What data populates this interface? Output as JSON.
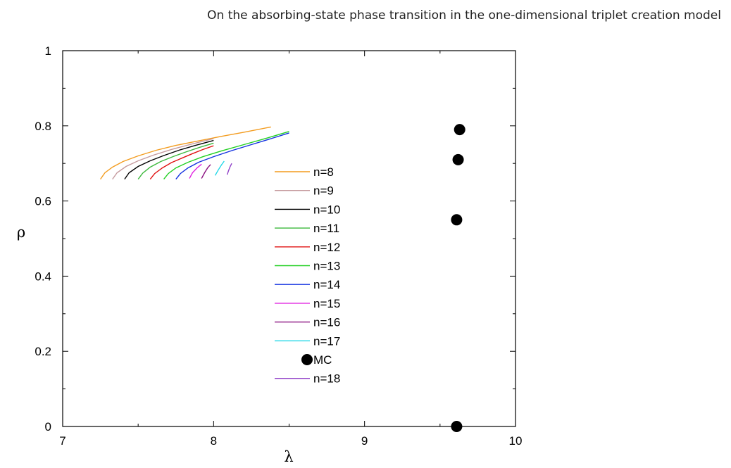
{
  "header": {
    "running_title": "On the absorbing-state phase transition in the one-dimensional triplet creation model"
  },
  "chart_data": {
    "type": "line",
    "title": "",
    "xlabel": "λ",
    "ylabel": "ρ",
    "xlim": [
      7,
      10
    ],
    "ylim": [
      0,
      1
    ],
    "xticks": [
      7,
      8,
      9,
      10
    ],
    "xtick_labels": [
      "7",
      "8",
      "9",
      "10"
    ],
    "yticks": [
      0,
      0.2,
      0.4,
      0.6,
      0.8,
      1
    ],
    "ytick_labels": [
      "0",
      "0.2",
      "0.4",
      "0.6",
      "0.8",
      "1"
    ],
    "grid": false,
    "legend_position": "center",
    "series": [
      {
        "name": "n=8",
        "kind": "line",
        "color": "#f39c1f",
        "x": [
          7.25,
          7.28,
          7.33,
          7.4,
          7.5,
          7.62,
          7.75,
          7.9,
          8.05,
          8.2,
          8.38
        ],
        "y": [
          0.658,
          0.675,
          0.69,
          0.705,
          0.72,
          0.735,
          0.748,
          0.76,
          0.772,
          0.783,
          0.797
        ]
      },
      {
        "name": "n=9",
        "kind": "line",
        "color": "#c59a9e",
        "x": [
          7.33,
          7.36,
          7.42,
          7.5,
          7.6,
          7.72,
          7.86,
          8.0
        ],
        "y": [
          0.658,
          0.675,
          0.692,
          0.707,
          0.722,
          0.737,
          0.752,
          0.766
        ]
      },
      {
        "name": "n=10",
        "kind": "line",
        "color": "#000000",
        "x": [
          7.41,
          7.44,
          7.5,
          7.58,
          7.67,
          7.77,
          7.88,
          8.0
        ],
        "y": [
          0.658,
          0.675,
          0.692,
          0.707,
          0.721,
          0.735,
          0.748,
          0.761
        ]
      },
      {
        "name": "n=11",
        "kind": "line",
        "color": "#3cb83c",
        "x": [
          7.5,
          7.53,
          7.58,
          7.65,
          7.73,
          7.82,
          7.91,
          8.0
        ],
        "y": [
          0.658,
          0.674,
          0.69,
          0.705,
          0.718,
          0.731,
          0.743,
          0.754
        ]
      },
      {
        "name": "n=12",
        "kind": "line",
        "color": "#e01010",
        "x": [
          7.58,
          7.61,
          7.66,
          7.72,
          7.79,
          7.86,
          7.93,
          8.0
        ],
        "y": [
          0.658,
          0.673,
          0.688,
          0.702,
          0.714,
          0.726,
          0.737,
          0.747
        ]
      },
      {
        "name": "n=13",
        "kind": "line",
        "color": "#22d022",
        "x": [
          7.67,
          7.7,
          7.75,
          7.83,
          7.93,
          8.05,
          8.2,
          8.35,
          8.5
        ],
        "y": [
          0.658,
          0.673,
          0.688,
          0.703,
          0.718,
          0.733,
          0.75,
          0.767,
          0.785
        ]
      },
      {
        "name": "n=14",
        "kind": "line",
        "color": "#1030e0",
        "x": [
          7.75,
          7.78,
          7.83,
          7.9,
          8.0,
          8.12,
          8.25,
          8.38,
          8.5
        ],
        "y": [
          0.658,
          0.673,
          0.688,
          0.703,
          0.718,
          0.734,
          0.75,
          0.766,
          0.781
        ]
      },
      {
        "name": "n=15",
        "kind": "line",
        "color": "#e020e0",
        "x": [
          7.84,
          7.86,
          7.89,
          7.92
        ],
        "y": [
          0.66,
          0.675,
          0.688,
          0.698
        ]
      },
      {
        "name": "n=16",
        "kind": "line",
        "color": "#8a1080",
        "x": [
          7.92,
          7.94,
          7.96,
          7.98
        ],
        "y": [
          0.66,
          0.675,
          0.688,
          0.697
        ]
      },
      {
        "name": "n=17",
        "kind": "line",
        "color": "#22d8e8",
        "x": [
          8.01,
          8.03,
          8.05,
          8.07
        ],
        "y": [
          0.668,
          0.682,
          0.695,
          0.706
        ]
      },
      {
        "name": "MC",
        "kind": "points",
        "color": "#000000",
        "x": [
          9.61,
          9.61,
          9.62,
          9.63
        ],
        "y": [
          0.0,
          0.55,
          0.71,
          0.79
        ]
      },
      {
        "name": "n=18",
        "kind": "line",
        "color": "#9040c8",
        "x": [
          8.09,
          8.1,
          8.11,
          8.12
        ],
        "y": [
          0.67,
          0.682,
          0.692,
          0.7
        ]
      }
    ]
  }
}
